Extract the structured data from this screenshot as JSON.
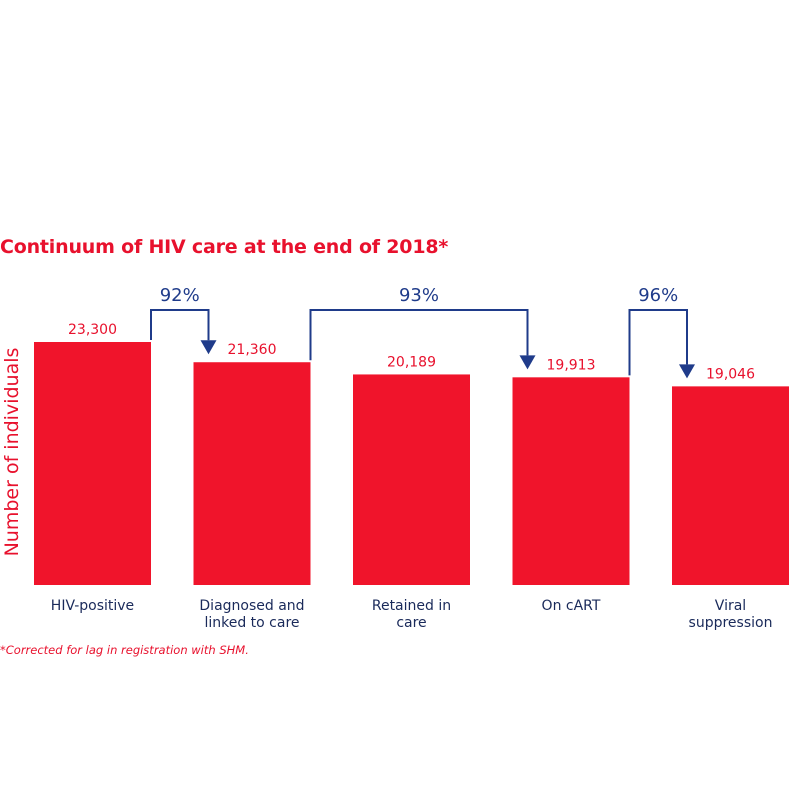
{
  "colors": {
    "bar": "#f0142b",
    "accent_text": "#e8112d",
    "arrow": "#1f3b8a",
    "label": "#1a2a5a"
  },
  "footnote": "*Corrected for lag in registration with SHM.",
  "chart_data": {
    "type": "bar",
    "title": "Continuum of HIV care at the end of 2018*",
    "ylabel": "Number of individuals",
    "xlabel": "",
    "categories": [
      [
        "HIV-positive"
      ],
      [
        "Diagnosed and",
        "linked to care"
      ],
      [
        "Retained in",
        "care"
      ],
      [
        "On cART"
      ],
      [
        "Viral",
        "suppression"
      ]
    ],
    "values": [
      23300,
      21360,
      20189,
      19913,
      19046
    ],
    "value_labels": [
      "23,300",
      "21,360",
      "20,189",
      "19,913",
      "19,046"
    ],
    "ylim": [
      0,
      23300
    ],
    "grid": false,
    "transitions": [
      {
        "from": 0,
        "to": 1,
        "label": "92%"
      },
      {
        "from": 1,
        "to": 3,
        "label": "93%"
      },
      {
        "from": 3,
        "to": 4,
        "label": "96%"
      }
    ]
  }
}
